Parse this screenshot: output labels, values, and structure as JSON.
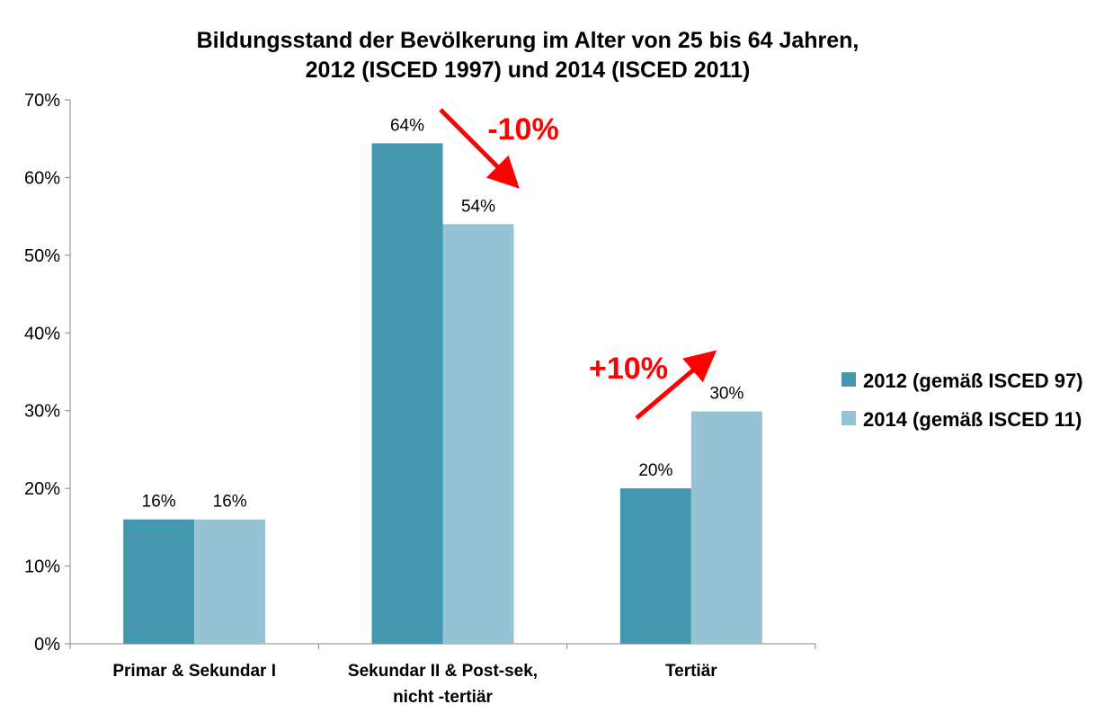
{
  "chart_data": {
    "type": "bar",
    "title": [
      "Bildungsstand der Bevölkerung im Alter von 25 bis 64 Jahren,",
      "2012 (ISCED 1997) und 2014 (ISCED 2011)"
    ],
    "categories": [
      [
        "Primar & Sekundar I"
      ],
      [
        "Sekundar II & Post-sek,",
        "nicht -tertiär"
      ],
      [
        "Tertiär"
      ]
    ],
    "series": [
      {
        "name": "2012 (gemäß ISCED 97)",
        "color": "#4398b0",
        "values": [
          16,
          64.4,
          20
        ],
        "labels": [
          "16%",
          "64%",
          "20%"
        ]
      },
      {
        "name": "2014 (gemäß ISCED 11)",
        "color": "#95c3d4",
        "values": [
          16,
          54,
          29.9
        ],
        "labels": [
          "16%",
          "54%",
          "30%"
        ]
      }
    ],
    "ylim": [
      0,
      70
    ],
    "yticks": [
      "0%",
      "10%",
      "20%",
      "30%",
      "40%",
      "50%",
      "60%",
      "70%"
    ],
    "xlabel": "",
    "ylabel": "",
    "grid": false,
    "legend_position": "right",
    "annotations": [
      {
        "text": "-10%",
        "color": "#ff0000",
        "direction": "down"
      },
      {
        "text": "+10%",
        "color": "#ff0000",
        "direction": "up"
      }
    ]
  }
}
